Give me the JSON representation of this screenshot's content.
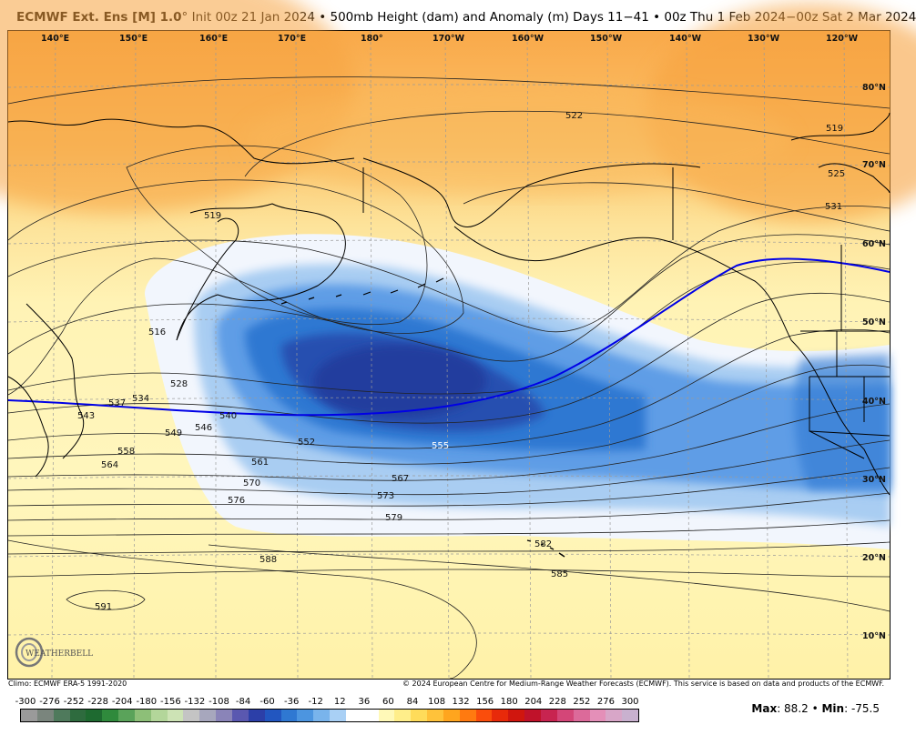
{
  "header": {
    "model": "ECMWF Ext. Ens [M] 1.0",
    "degree": "°",
    "info": "Init 00z 21 Jan 2024 • 500mb Height (dam) and Anomaly (m)  Days 11−41 • 00z Thu 1 Feb 2024−00z Sat 2 Mar 2024"
  },
  "map": {
    "lon_ticks": [
      "140°E",
      "150°E",
      "160°E",
      "170°E",
      "180°",
      "170°W",
      "160°W",
      "150°W",
      "140°W",
      "130°W",
      "120°W"
    ],
    "lat_ticks": [
      "80°N",
      "70°N",
      "60°N",
      "50°N",
      "40°N",
      "30°N",
      "20°N",
      "10°N"
    ],
    "contour_labels": [
      "522",
      "519",
      "531",
      "525",
      "519",
      "516",
      "528",
      "537",
      "534",
      "543",
      "540",
      "546",
      "549",
      "552",
      "555",
      "558",
      "561",
      "564",
      "567",
      "570",
      "573",
      "576",
      "579",
      "582",
      "585",
      "588",
      "591"
    ],
    "colors": {
      "deep_blue": "#233e9e",
      "mid_blue": "#2f78d2",
      "light_blue": "#8fbaee",
      "pale": "#f2f6fd",
      "yellow": "#fff3a6",
      "orange": "#f9a94a",
      "reference_line": "#0000e6"
    }
  },
  "footer": {
    "climo": "Climo: ECMWF ERA-5 1991-2020",
    "copyright": "© 2024 European Centre for Medium-Range Weather Forecasts (ECMWF). This service is based on data and products of the ECMWF."
  },
  "colorbar": {
    "labels": [
      "-300",
      "-276",
      "-252",
      "-228",
      "-204",
      "-180",
      "-156",
      "-132",
      "-108",
      "-84",
      "-60",
      "-36",
      "-12",
      "12",
      "36",
      "60",
      "84",
      "108",
      "132",
      "156",
      "180",
      "204",
      "228",
      "252",
      "276",
      "300"
    ],
    "colors": [
      "#9a9a9a",
      "#7a857d",
      "#4f7a5c",
      "#2e6b3e",
      "#1e6a30",
      "#2f8a3c",
      "#5aa35a",
      "#8dbf78",
      "#b3d69a",
      "#cde3b5",
      "#c4c4c4",
      "#a7a7bd",
      "#8a84b8",
      "#5a58b0",
      "#2c3fa8",
      "#2256c0",
      "#2f78d2",
      "#4c95e0",
      "#79b4ec",
      "#a9d0f5",
      "#ffffff",
      "#ffffff",
      "#fff9b8",
      "#ffee8a",
      "#ffdc5a",
      "#ffc23a",
      "#ffa51e",
      "#ff7a10",
      "#fa4d0c",
      "#e82a0a",
      "#d0160e",
      "#c0122a",
      "#c82450",
      "#d44678",
      "#dc6a9a",
      "#e48fb8",
      "#d8a6c8",
      "#c9b1cf"
    ],
    "max_label": "Max",
    "max_value": ": 88.2",
    "sep": " • ",
    "min_label": "Min",
    "min_value": ": -75.5"
  },
  "logo": {
    "text": "WEATHERBELL"
  }
}
